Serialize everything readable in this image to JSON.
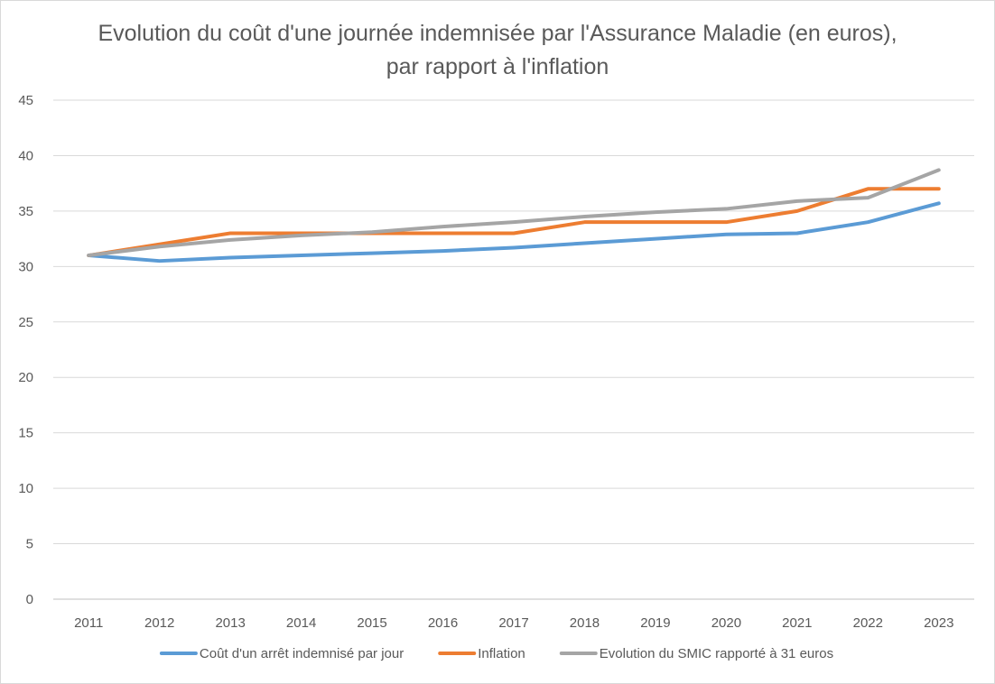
{
  "chart_data": {
    "type": "line",
    "title": "Evolution du coût d'une journée indemnisée par l'Assurance Maladie (en euros), par rapport à l'inflation",
    "categories": [
      "2011",
      "2012",
      "2013",
      "2014",
      "2015",
      "2016",
      "2017",
      "2018",
      "2019",
      "2020",
      "2021",
      "2022",
      "2023"
    ],
    "ylim": [
      0,
      45
    ],
    "yticks": [
      0,
      5,
      10,
      15,
      20,
      25,
      30,
      35,
      40,
      45
    ],
    "grid": true,
    "legend_position": "bottom",
    "series": [
      {
        "name": "Coût d'un arrêt indemnisé par jour",
        "color": "#5b9bd5",
        "values": [
          31.0,
          30.5,
          30.8,
          31.0,
          31.2,
          31.4,
          31.7,
          32.1,
          32.5,
          32.9,
          33.0,
          34.0,
          35.7
        ]
      },
      {
        "name": "Inflation",
        "color": "#ed7d31",
        "values": [
          31.0,
          32.0,
          33.0,
          33.0,
          33.0,
          33.0,
          33.0,
          34.0,
          34.0,
          34.0,
          35.0,
          37.0,
          37.0
        ]
      },
      {
        "name": "Evolution du SMIC rapporté à 31 euros",
        "color": "#a5a5a5",
        "values": [
          31.0,
          31.8,
          32.4,
          32.8,
          33.1,
          33.6,
          34.0,
          34.5,
          34.9,
          35.2,
          35.9,
          36.2,
          38.7
        ]
      }
    ]
  }
}
